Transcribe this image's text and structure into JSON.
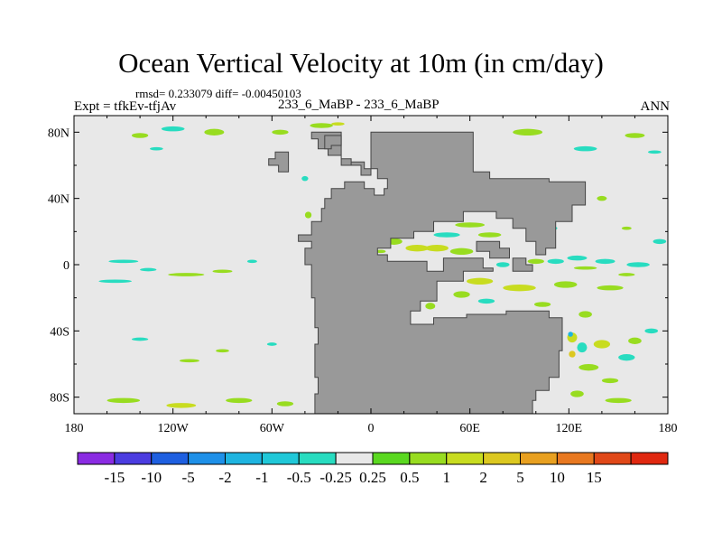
{
  "title": "Ocean Vertical Velocity at 10m (in cm/day)",
  "stats": "rmsd= 0.233079 diff= -0.00450103",
  "experiment": "Expt = tfkEv-tfjAv",
  "subtitle": "233_6_MaBP - 233_6_MaBP",
  "season": "ANN",
  "colors": {
    "ocean": "#e8e8e8",
    "land": "#999999",
    "coast": "#444444"
  },
  "chart_data": {
    "type": "heatmap",
    "title": "Ocean Vertical Velocity at 10m (in cm/day)",
    "xlim": [
      -180,
      180
    ],
    "ylim": [
      -90,
      90
    ],
    "x_ticks": [
      {
        "value": -180,
        "label": "180"
      },
      {
        "value": -120,
        "label": "120W"
      },
      {
        "value": -60,
        "label": "60W"
      },
      {
        "value": 0,
        "label": "0"
      },
      {
        "value": 60,
        "label": "60E"
      },
      {
        "value": 120,
        "label": "120E"
      },
      {
        "value": 180,
        "label": "180"
      }
    ],
    "y_ticks": [
      {
        "value": 80,
        "label": "80N"
      },
      {
        "value": 40,
        "label": "40N"
      },
      {
        "value": 0,
        "label": "0"
      },
      {
        "value": -40,
        "label": "40S"
      },
      {
        "value": -80,
        "label": "80S"
      }
    ],
    "colorbar": {
      "colors": [
        "#8a2be2",
        "#4b3ce0",
        "#1e5fe0",
        "#1e90e8",
        "#1eb4e0",
        "#20c8d8",
        "#28dcc0",
        "#e8e8e8",
        "#5ad820",
        "#98dc20",
        "#c8dc20",
        "#dcc820",
        "#e8a020",
        "#e87820",
        "#e04818",
        "#e02810"
      ],
      "labels": [
        "-15",
        "-10",
        "-5",
        "-2",
        "-1",
        "-0.5",
        "-0.25",
        "0.25",
        "0.5",
        "1",
        "2",
        "5",
        "10",
        "15"
      ]
    },
    "land": [
      [
        [
          -36,
          80
        ],
        [
          -18,
          80
        ],
        [
          -18,
          64
        ],
        [
          -12,
          64
        ],
        [
          -12,
          60
        ],
        [
          -6,
          60
        ],
        [
          -6,
          54
        ],
        [
          0,
          54
        ],
        [
          0,
          80
        ],
        [
          62,
          80
        ],
        [
          62,
          56
        ],
        [
          72,
          56
        ],
        [
          72,
          52
        ],
        [
          108,
          52
        ],
        [
          108,
          50
        ],
        [
          130,
          50
        ],
        [
          130,
          36
        ],
        [
          122,
          36
        ],
        [
          122,
          26
        ],
        [
          112,
          26
        ],
        [
          112,
          10
        ],
        [
          106,
          10
        ],
        [
          106,
          6
        ],
        [
          100,
          6
        ],
        [
          100,
          14
        ],
        [
          94,
          14
        ],
        [
          94,
          22
        ],
        [
          86,
          22
        ],
        [
          86,
          28
        ],
        [
          76,
          28
        ],
        [
          76,
          32
        ],
        [
          56,
          32
        ],
        [
          56,
          26
        ],
        [
          38,
          26
        ],
        [
          38,
          20
        ],
        [
          26,
          20
        ],
        [
          26,
          16
        ],
        [
          12,
          16
        ],
        [
          12,
          10
        ],
        [
          4,
          10
        ],
        [
          4,
          6
        ],
        [
          10,
          6
        ],
        [
          10,
          2
        ],
        [
          34,
          2
        ],
        [
          34,
          -4
        ],
        [
          44,
          -4
        ],
        [
          44,
          4
        ],
        [
          68,
          4
        ],
        [
          68,
          -2
        ],
        [
          74,
          -2
        ],
        [
          74,
          -4
        ],
        [
          56,
          -4
        ],
        [
          56,
          -10
        ],
        [
          40,
          -10
        ],
        [
          40,
          -22
        ],
        [
          30,
          -22
        ],
        [
          30,
          -28
        ],
        [
          24,
          -28
        ],
        [
          24,
          -36
        ],
        [
          38,
          -36
        ],
        [
          38,
          -32
        ],
        [
          58,
          -32
        ],
        [
          58,
          -30
        ],
        [
          82,
          -30
        ],
        [
          82,
          -28
        ],
        [
          108,
          -28
        ],
        [
          108,
          -32
        ],
        [
          116,
          -32
        ],
        [
          116,
          -52
        ],
        [
          114,
          -52
        ],
        [
          114,
          -68
        ],
        [
          108,
          -68
        ],
        [
          108,
          -76
        ],
        [
          100,
          -76
        ],
        [
          100,
          -82
        ],
        [
          98,
          -82
        ],
        [
          98,
          -90
        ],
        [
          -34,
          -90
        ],
        [
          -34,
          -78
        ],
        [
          -32,
          -78
        ],
        [
          -32,
          -68
        ],
        [
          -34,
          -68
        ],
        [
          -34,
          -48
        ],
        [
          -32,
          -48
        ],
        [
          -32,
          -38
        ],
        [
          -34,
          -38
        ],
        [
          -34,
          -20
        ],
        [
          -36,
          -20
        ],
        [
          -36,
          0
        ],
        [
          -40,
          0
        ],
        [
          -40,
          10
        ],
        [
          -36,
          10
        ],
        [
          -36,
          14
        ],
        [
          -44,
          14
        ],
        [
          -44,
          18
        ],
        [
          -36,
          18
        ],
        [
          -36,
          26
        ],
        [
          -30,
          26
        ],
        [
          -30,
          34
        ],
        [
          -28,
          34
        ],
        [
          -28,
          40
        ],
        [
          -24,
          40
        ],
        [
          -24,
          46
        ],
        [
          -16,
          46
        ],
        [
          -16,
          50
        ],
        [
          -4,
          50
        ],
        [
          -4,
          46
        ],
        [
          2,
          46
        ],
        [
          2,
          42
        ],
        [
          8,
          42
        ],
        [
          8,
          46
        ],
        [
          10,
          46
        ],
        [
          10,
          52
        ],
        [
          4,
          52
        ],
        [
          4,
          58
        ],
        [
          -4,
          58
        ],
        [
          -4,
          62
        ],
        [
          -12,
          62
        ],
        [
          -12,
          60
        ],
        [
          -18,
          60
        ],
        [
          -18,
          66
        ],
        [
          -26,
          66
        ],
        [
          -26,
          70
        ],
        [
          -32,
          70
        ],
        [
          -32,
          76
        ],
        [
          -36,
          76
        ]
      ],
      [
        [
          -28,
          78
        ],
        [
          -18,
          78
        ],
        [
          -18,
          72
        ],
        [
          -24,
          72
        ],
        [
          -24,
          70
        ],
        [
          -28,
          70
        ]
      ],
      [
        [
          -58,
          68
        ],
        [
          -50,
          68
        ],
        [
          -50,
          56
        ],
        [
          -56,
          56
        ],
        [
          -56,
          60
        ],
        [
          -62,
          60
        ],
        [
          -62,
          64
        ],
        [
          -58,
          64
        ]
      ],
      [
        [
          64,
          14
        ],
        [
          78,
          14
        ],
        [
          78,
          10
        ],
        [
          84,
          10
        ],
        [
          84,
          4
        ],
        [
          72,
          4
        ],
        [
          72,
          8
        ],
        [
          64,
          8
        ]
      ],
      [
        [
          86,
          4
        ],
        [
          94,
          4
        ],
        [
          94,
          0
        ],
        [
          98,
          0
        ],
        [
          98,
          -4
        ],
        [
          86,
          -4
        ]
      ]
    ],
    "anomalies": [
      {
        "lon": -140,
        "lat": 78,
        "w": 10,
        "h": 3,
        "value": 0.5
      },
      {
        "lon": -120,
        "lat": 82,
        "w": 14,
        "h": 3,
        "value": -0.5
      },
      {
        "lon": -95,
        "lat": 80,
        "w": 12,
        "h": 4,
        "value": 0.5
      },
      {
        "lon": -78,
        "lat": 84,
        "w": 10,
        "h": 3,
        "value": -0.25
      },
      {
        "lon": -55,
        "lat": 80,
        "w": 10,
        "h": 3,
        "value": 0.5
      },
      {
        "lon": -130,
        "lat": 70,
        "w": 8,
        "h": 2,
        "value": -0.5
      },
      {
        "lon": -30,
        "lat": 84,
        "w": 14,
        "h": 3,
        "value": 0.5
      },
      {
        "lon": -20,
        "lat": 85,
        "w": 8,
        "h": 2,
        "value": 1
      },
      {
        "lon": 40,
        "lat": 78,
        "w": 10,
        "h": 3,
        "value": 0.5
      },
      {
        "lon": 70,
        "lat": 75,
        "w": 12,
        "h": 3,
        "value": -0.25
      },
      {
        "lon": 95,
        "lat": 80,
        "w": 18,
        "h": 4,
        "value": 0.5
      },
      {
        "lon": 130,
        "lat": 70,
        "w": 14,
        "h": 3,
        "value": -0.5
      },
      {
        "lon": 160,
        "lat": 78,
        "w": 12,
        "h": 3,
        "value": 0.5
      },
      {
        "lon": 172,
        "lat": 68,
        "w": 8,
        "h": 2,
        "value": -0.5
      },
      {
        "lon": 140,
        "lat": 40,
        "w": 6,
        "h": 3,
        "value": 0.5
      },
      {
        "lon": 155,
        "lat": 22,
        "w": 6,
        "h": 2,
        "value": 0.5
      },
      {
        "lon": 175,
        "lat": 14,
        "w": 8,
        "h": 3,
        "value": -0.5
      },
      {
        "lon": -40,
        "lat": 52,
        "w": 4,
        "h": 3,
        "value": -0.5
      },
      {
        "lon": -150,
        "lat": 2,
        "w": 18,
        "h": 2,
        "value": -0.5
      },
      {
        "lon": -112,
        "lat": -6,
        "w": 22,
        "h": 2,
        "value": 0.5
      },
      {
        "lon": -155,
        "lat": -10,
        "w": 20,
        "h": 2,
        "value": -0.5
      },
      {
        "lon": -90,
        "lat": -4,
        "w": 12,
        "h": 2,
        "value": 0.5
      },
      {
        "lon": -72,
        "lat": 2,
        "w": 6,
        "h": 2,
        "value": -0.5
      },
      {
        "lon": -135,
        "lat": -3,
        "w": 10,
        "h": 2,
        "value": -0.5
      },
      {
        "lon": 6,
        "lat": 8,
        "w": 6,
        "h": 2,
        "value": 0.5
      },
      {
        "lon": 14,
        "lat": 14,
        "w": 10,
        "h": 4,
        "value": 0.5
      },
      {
        "lon": 28,
        "lat": 10,
        "w": 14,
        "h": 4,
        "value": 1
      },
      {
        "lon": 46,
        "lat": 18,
        "w": 16,
        "h": 3,
        "value": -0.5
      },
      {
        "lon": 60,
        "lat": 24,
        "w": 18,
        "h": 3,
        "value": 0.5
      },
      {
        "lon": 72,
        "lat": 18,
        "w": 14,
        "h": 3,
        "value": 0.5
      },
      {
        "lon": 92,
        "lat": 24,
        "w": 12,
        "h": 4,
        "value": 0.5
      },
      {
        "lon": 108,
        "lat": 22,
        "w": 10,
        "h": 3,
        "value": -0.5
      },
      {
        "lon": 40,
        "lat": 10,
        "w": 14,
        "h": 4,
        "value": 1
      },
      {
        "lon": 55,
        "lat": 8,
        "w": 14,
        "h": 4,
        "value": 0.5
      },
      {
        "lon": 80,
        "lat": 0,
        "w": 8,
        "h": 3,
        "value": -0.5
      },
      {
        "lon": 100,
        "lat": 2,
        "w": 10,
        "h": 3,
        "value": 0.5
      },
      {
        "lon": 112,
        "lat": 2,
        "w": 10,
        "h": 3,
        "value": -0.5
      },
      {
        "lon": 125,
        "lat": 4,
        "w": 12,
        "h": 3,
        "value": -0.5
      },
      {
        "lon": 142,
        "lat": 2,
        "w": 12,
        "h": 3,
        "value": -0.5
      },
      {
        "lon": 162,
        "lat": 0,
        "w": 14,
        "h": 3,
        "value": -0.5
      },
      {
        "lon": 130,
        "lat": -2,
        "w": 14,
        "h": 2,
        "value": 0.5
      },
      {
        "lon": 155,
        "lat": -6,
        "w": 10,
        "h": 2,
        "value": 0.5
      },
      {
        "lon": 66,
        "lat": -10,
        "w": 16,
        "h": 4,
        "value": 1
      },
      {
        "lon": 90,
        "lat": -14,
        "w": 20,
        "h": 4,
        "value": 1
      },
      {
        "lon": 118,
        "lat": -12,
        "w": 14,
        "h": 4,
        "value": 0.5
      },
      {
        "lon": 145,
        "lat": -14,
        "w": 16,
        "h": 3,
        "value": 0.5
      },
      {
        "lon": 45,
        "lat": -8,
        "w": 10,
        "h": 4,
        "value": 0.5
      },
      {
        "lon": 55,
        "lat": -18,
        "w": 10,
        "h": 4,
        "value": 0.5
      },
      {
        "lon": 70,
        "lat": -22,
        "w": 10,
        "h": 3,
        "value": -0.5
      },
      {
        "lon": 36,
        "lat": -25,
        "w": 6,
        "h": 4,
        "value": 0.5
      },
      {
        "lon": 104,
        "lat": -24,
        "w": 10,
        "h": 3,
        "value": 0.5
      },
      {
        "lon": 130,
        "lat": -30,
        "w": 8,
        "h": 4,
        "value": 0.5
      },
      {
        "lon": 122,
        "lat": -44,
        "w": 6,
        "h": 6,
        "value": 1
      },
      {
        "lon": 128,
        "lat": -50,
        "w": 6,
        "h": 6,
        "value": -0.5
      },
      {
        "lon": 122,
        "lat": -54,
        "w": 4,
        "h": 4,
        "value": 2
      },
      {
        "lon": 121,
        "lat": -42,
        "w": 3,
        "h": 3,
        "value": -2
      },
      {
        "lon": 140,
        "lat": -48,
        "w": 10,
        "h": 5,
        "value": 1
      },
      {
        "lon": 132,
        "lat": -62,
        "w": 12,
        "h": 4,
        "value": 0.5
      },
      {
        "lon": 155,
        "lat": -56,
        "w": 10,
        "h": 4,
        "value": -0.5
      },
      {
        "lon": 160,
        "lat": -46,
        "w": 8,
        "h": 4,
        "value": 0.5
      },
      {
        "lon": 170,
        "lat": -40,
        "w": 8,
        "h": 3,
        "value": -0.5
      },
      {
        "lon": 145,
        "lat": -70,
        "w": 10,
        "h": 3,
        "value": 0.5
      },
      {
        "lon": 125,
        "lat": -78,
        "w": 8,
        "h": 4,
        "value": 0.5
      },
      {
        "lon": -140,
        "lat": -45,
        "w": 10,
        "h": 2,
        "value": -0.5
      },
      {
        "lon": -60,
        "lat": -48,
        "w": 6,
        "h": 2,
        "value": -0.5
      },
      {
        "lon": -110,
        "lat": -58,
        "w": 12,
        "h": 2,
        "value": 0.5
      },
      {
        "lon": -90,
        "lat": -52,
        "w": 8,
        "h": 2,
        "value": 0.5
      },
      {
        "lon": -150,
        "lat": -82,
        "w": 20,
        "h": 3,
        "value": 0.5
      },
      {
        "lon": -115,
        "lat": -85,
        "w": 18,
        "h": 3,
        "value": 1
      },
      {
        "lon": -80,
        "lat": -82,
        "w": 16,
        "h": 3,
        "value": 0.5
      },
      {
        "lon": -52,
        "lat": -84,
        "w": 10,
        "h": 3,
        "value": 0.5
      },
      {
        "lon": 0,
        "lat": -88,
        "w": 24,
        "h": 2,
        "value": 0.5
      },
      {
        "lon": 60,
        "lat": -88,
        "w": 20,
        "h": 2,
        "value": 0.5
      },
      {
        "lon": 150,
        "lat": -82,
        "w": 16,
        "h": 3,
        "value": 0.5
      },
      {
        "lon": -10,
        "lat": 40,
        "w": 4,
        "h": 3,
        "value": -0.5
      },
      {
        "lon": -38,
        "lat": 30,
        "w": 4,
        "h": 4,
        "value": 0.5
      },
      {
        "lon": -38,
        "lat": 16,
        "w": 4,
        "h": 3,
        "value": -0.5
      }
    ]
  }
}
